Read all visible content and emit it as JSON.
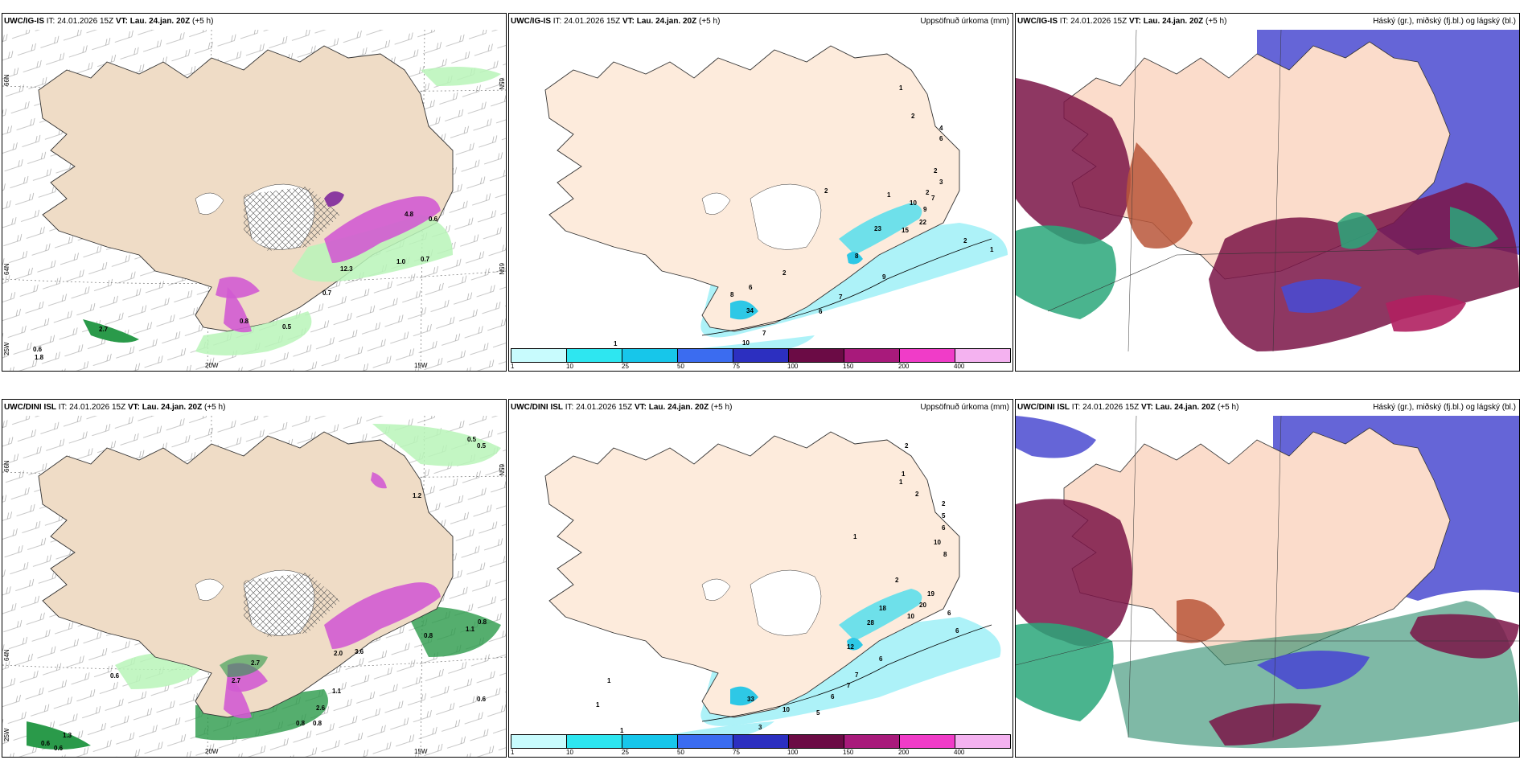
{
  "panels": [
    {
      "id": "top-left",
      "model": "UWC/IG-IS",
      "it_label": "IT:",
      "it_value": "24.01.2026 15Z",
      "vt_label": "VT:",
      "vt_value": "Lau. 24.jan. 20Z",
      "lead": "(+5 h)",
      "right_title": "",
      "axis_labels": [
        "20W",
        "15W",
        "66N",
        "64N",
        "65N",
        "25W",
        "65N"
      ],
      "value_labels": [
        "2.7",
        "1.8",
        "0.5",
        "0.7",
        "1.0",
        "0.7",
        "0.6",
        "0.6",
        "12.3",
        "4.8",
        "0.8"
      ]
    },
    {
      "id": "top-middle",
      "model": "UWC/IG-IS",
      "it_label": "IT:",
      "it_value": "24.01.2026 15Z",
      "vt_label": "VT:",
      "vt_value": "Lau. 24.jan. 20Z",
      "lead": "(+5 h)",
      "right_title": "Uppsöfnuð úrkoma (mm)",
      "value_labels": [
        "1",
        "2",
        "4",
        "6",
        "2",
        "3",
        "2",
        "7",
        "10",
        "9",
        "22",
        "15",
        "2",
        "1",
        "1",
        "2",
        "23",
        "8",
        "9",
        "2",
        "6",
        "34",
        "8",
        "7",
        "6",
        "7",
        "10",
        "1"
      ],
      "colorbar": [
        "1",
        "10",
        "25",
        "50",
        "75",
        "100",
        "150",
        "200",
        "400"
      ]
    },
    {
      "id": "top-right",
      "model": "UWC/IG-IS",
      "it_label": "IT:",
      "it_value": "24.01.2026 15Z",
      "vt_label": "VT:",
      "vt_value": "Lau. 24.jan. 20Z",
      "lead": "(+5 h)",
      "right_title": "Háský (gr.), miðský (fj.bl.) og lágský (bl.)"
    },
    {
      "id": "bottom-left",
      "model": "UWC/DINI ISL",
      "it_label": "IT:",
      "it_value": "24.01.2026 15Z",
      "vt_label": "VT:",
      "vt_value": "Lau. 24.jan. 20Z",
      "lead": "(+5 h)",
      "right_title": "",
      "axis_labels": [
        "20W",
        "15W",
        "66N",
        "64N",
        "65N",
        "25W"
      ],
      "value_labels": [
        "0.5",
        "0.6",
        "2.7",
        "2.0",
        "3.6",
        "0.8",
        "0.8",
        "1.1",
        "0.8",
        "1.1",
        "0.6",
        "1.3",
        "2.6",
        "0.8",
        "0.5",
        "0.6",
        "0.6",
        "1.2",
        "2.7"
      ]
    },
    {
      "id": "bottom-middle",
      "model": "UWC/DINI ISL",
      "it_label": "IT:",
      "it_value": "24.01.2026 15Z",
      "vt_label": "VT:",
      "vt_value": "Lau. 24.jan. 20Z",
      "lead": "(+5 h)",
      "right_title": "Uppsöfnuð úrkoma (mm)",
      "value_labels": [
        "2",
        "1",
        "1",
        "2",
        "2",
        "5",
        "6",
        "10",
        "8",
        "1",
        "2",
        "19",
        "20",
        "10",
        "6",
        "6",
        "18",
        "28",
        "12",
        "6",
        "7",
        "7",
        "6",
        "1",
        "33",
        "10",
        "5",
        "3",
        "1",
        "1"
      ],
      "colorbar": [
        "1",
        "10",
        "25",
        "50",
        "75",
        "100",
        "150",
        "200",
        "400"
      ]
    },
    {
      "id": "bottom-right",
      "model": "UWC/DINI ISL",
      "it_label": "IT:",
      "it_value": "24.01.2026 15Z",
      "vt_label": "VT:",
      "vt_value": "Lau. 24.jan. 20Z",
      "lead": "(+5 h)",
      "right_title": "Háský (gr.), miðský (fj.bl.) og lágský (bl.)"
    }
  ],
  "colors": {
    "land": "#fbeee0",
    "coast": "#333333",
    "precip_light": "#b9f5b9",
    "precip_green": "#2a9a4a",
    "snow_pink": "#d25bd2",
    "accum_cyan": "#9ff0f7",
    "high_cloud": "#7a1446",
    "mid_cloud": "#4a4ad0",
    "low_cloud": "#2aa77a",
    "colorbar": [
      "#c8fbfd",
      "#2ee6f0",
      "#17c6ea",
      "#3b6cf0",
      "#2c2fc0",
      "#6b0b45",
      "#a81a7b",
      "#f03cc8",
      "#f4b2f0"
    ]
  }
}
